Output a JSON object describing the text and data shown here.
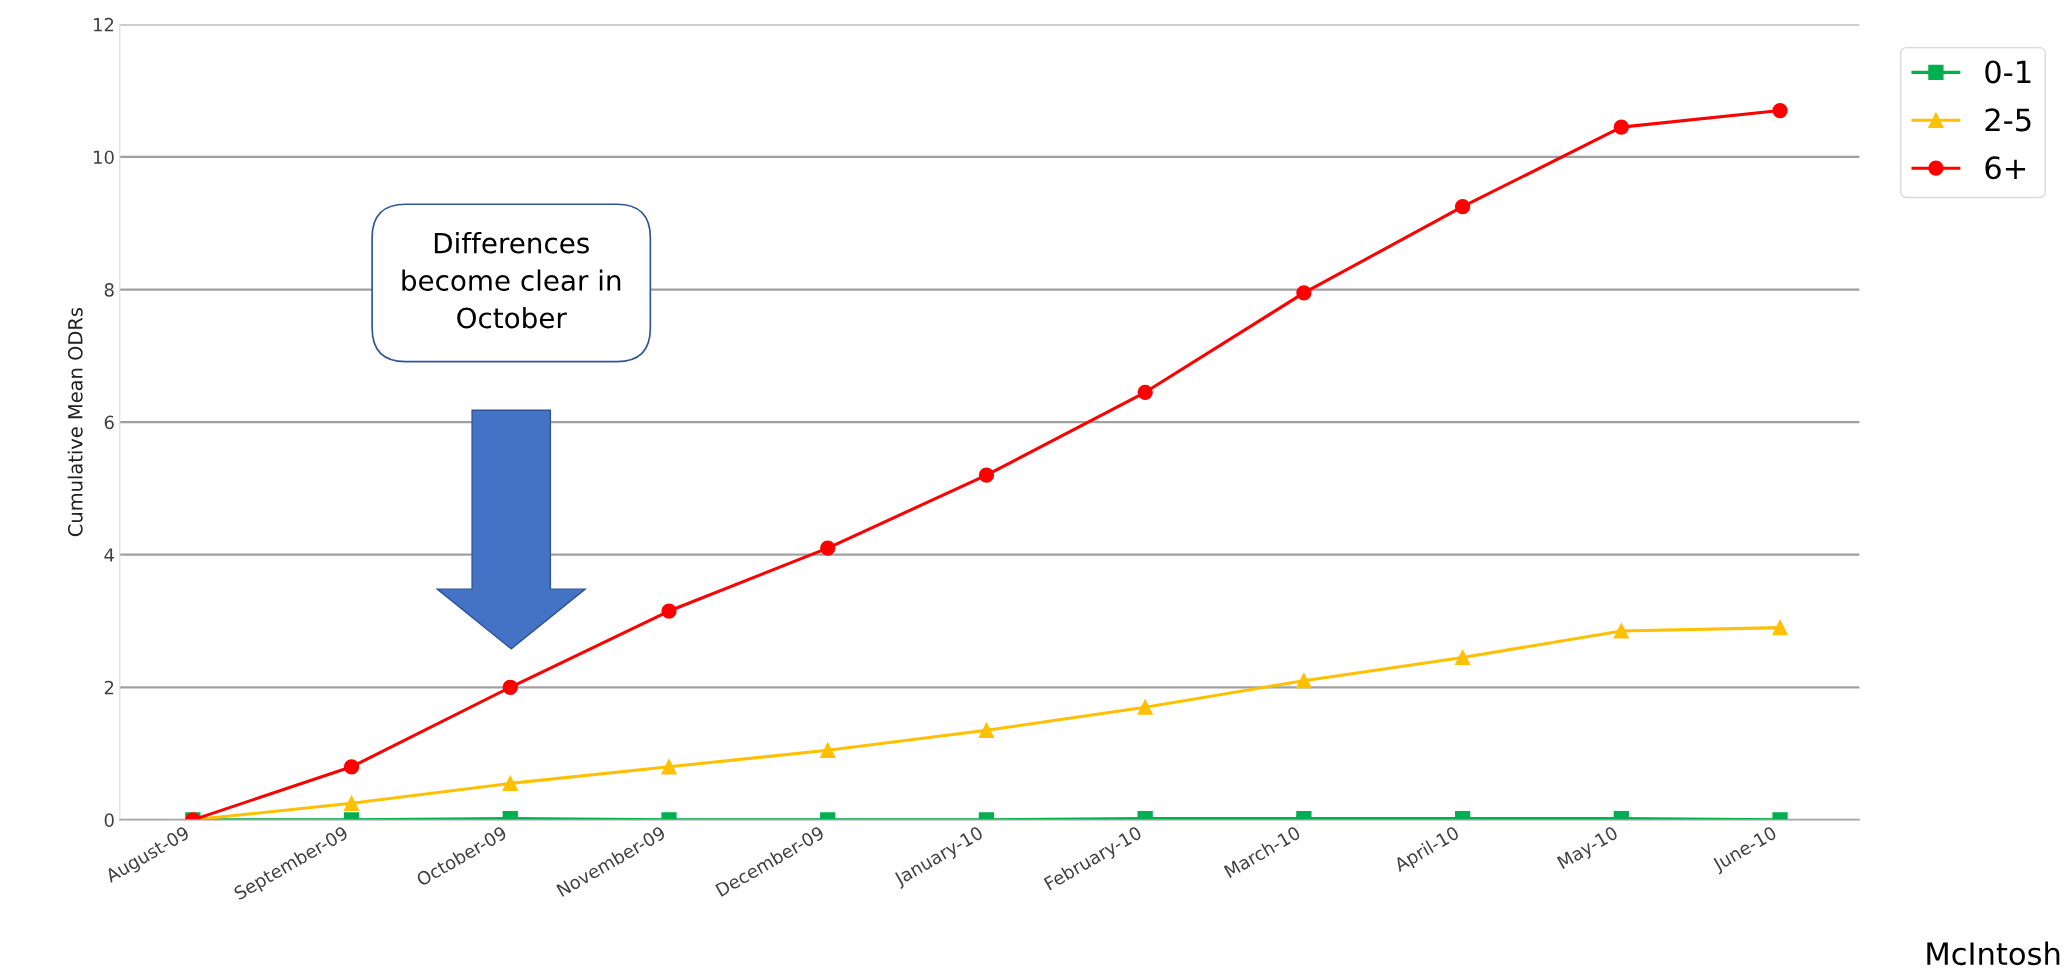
{
  "chart_data": {
    "type": "line",
    "ylabel": "Cumulative Mean ODRs",
    "categories": [
      "August-09",
      "September-09",
      "October-09",
      "November-09",
      "December-09",
      "January-10",
      "February-10",
      "March-10",
      "April-10",
      "May-10",
      "June-10"
    ],
    "series": [
      {
        "name": "0-1",
        "color": "#00b050",
        "marker": "square",
        "values": [
          0,
          0,
          0.02,
          0,
          0,
          0,
          0.02,
          0.02,
          0.02,
          0.02,
          0
        ]
      },
      {
        "name": "2-5",
        "color": "#ffc000",
        "marker": "triangle",
        "values": [
          0,
          0.25,
          0.55,
          0.8,
          1.05,
          1.35,
          1.7,
          2.1,
          2.45,
          2.85,
          2.9
        ]
      },
      {
        "name": "6+",
        "color": "#ff0000",
        "marker": "circle",
        "values": [
          0,
          0.8,
          2.0,
          3.15,
          4.1,
          5.2,
          6.45,
          7.95,
          9.25,
          10.45,
          10.7
        ]
      }
    ],
    "ylim": [
      0,
      12
    ],
    "yticks": [
      0,
      2,
      4,
      6,
      8,
      10,
      12
    ],
    "grid": "y",
    "legend": "top right",
    "line_style": "solid",
    "annotations": [
      "Differences\nbecome clear in\nOctober",
      "McIntosh"
    ]
  }
}
